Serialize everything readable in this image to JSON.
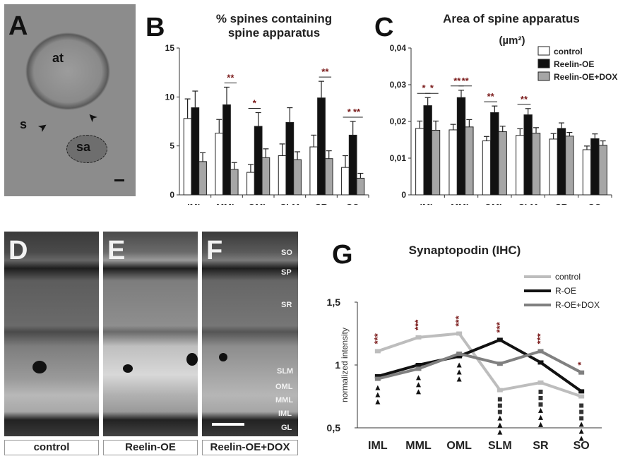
{
  "panels": {
    "a": {
      "letter": "A",
      "labels": {
        "at": "at",
        "s": "s",
        "sa": "sa"
      }
    },
    "b": {
      "letter": "B"
    },
    "c": {
      "letter": "C"
    },
    "d": {
      "letter": "D",
      "caption": "control"
    },
    "e": {
      "letter": "E",
      "caption": "Reelin-OE"
    },
    "f": {
      "letter": "F",
      "caption": "Reelin-OE+DOX"
    },
    "g": {
      "letter": "G"
    }
  },
  "layer_labels": [
    "SO",
    "SP",
    "SR",
    "SLM",
    "OML",
    "MML",
    "IML",
    "GL"
  ],
  "colors": {
    "control": "#ffffff",
    "reelin_oe": "#111111",
    "reelin_oe_dox": "#a6a6a6",
    "g_control": "#bdbdbd",
    "g_roe": "#111111",
    "g_roedox": "#808080",
    "sig": "#7a1a1a"
  },
  "chart_data": [
    {
      "id": "b",
      "type": "bar",
      "title": "% spines containing\nspine apparatus",
      "categories": [
        "IML",
        "MML",
        "OML",
        "SLM",
        "SR",
        "SO"
      ],
      "ylim": [
        0,
        15
      ],
      "yticks": [
        "0",
        "5",
        "10",
        "15"
      ],
      "series": [
        {
          "name": "control",
          "values": [
            7.8,
            6.3,
            2.3,
            4.0,
            4.9,
            2.8
          ],
          "errors": [
            2.0,
            1.4,
            0.8,
            1.2,
            1.2,
            1.2
          ]
        },
        {
          "name": "Reelin-OE",
          "values": [
            8.9,
            9.2,
            7.0,
            7.4,
            9.9,
            6.1
          ],
          "errors": [
            1.7,
            1.8,
            1.4,
            1.5,
            1.7,
            1.4
          ]
        },
        {
          "name": "Reelin-OE+DOX",
          "values": [
            3.4,
            2.6,
            3.8,
            3.6,
            3.7,
            1.7
          ],
          "errors": [
            0.9,
            0.7,
            0.9,
            0.8,
            0.8,
            0.5
          ]
        }
      ],
      "significance": [
        {
          "category": "MML",
          "pair": [
            1,
            2
          ],
          "label": "**"
        },
        {
          "category": "OML",
          "pair": [
            0,
            1
          ],
          "label": "*"
        },
        {
          "category": "SR",
          "pair": [
            1,
            2
          ],
          "label": "**"
        },
        {
          "category": "SO",
          "pair": [
            0,
            1
          ],
          "label": "*"
        },
        {
          "category": "SO",
          "pair": [
            1,
            2
          ],
          "label": "**"
        }
      ]
    },
    {
      "id": "c",
      "type": "bar",
      "title": "Area of spine apparatus",
      "ylabel": "(µm²)",
      "categories": [
        "IML",
        "MML",
        "OML",
        "SLM",
        "SR",
        "SO"
      ],
      "ylim": [
        0,
        0.04
      ],
      "yticks": [
        "0",
        "0,01",
        "0,02",
        "0,03",
        "0,04"
      ],
      "legend": [
        "control",
        "Reelin-OE",
        "Reelin-OE+DOX"
      ],
      "legend_position": "top-right",
      "series": [
        {
          "name": "control",
          "values": [
            0.0181,
            0.0177,
            0.0147,
            0.0162,
            0.0152,
            0.0123
          ],
          "errors": [
            0.002,
            0.0015,
            0.0012,
            0.0018,
            0.0015,
            0.001
          ]
        },
        {
          "name": "Reelin-OE",
          "values": [
            0.0243,
            0.0265,
            0.0224,
            0.0218,
            0.0181,
            0.0153
          ],
          "errors": [
            0.0022,
            0.002,
            0.0018,
            0.0017,
            0.0015,
            0.0013
          ]
        },
        {
          "name": "Reelin-OE+DOX",
          "values": [
            0.0176,
            0.0185,
            0.0172,
            0.0168,
            0.016,
            0.0135
          ],
          "errors": [
            0.0025,
            0.002,
            0.0015,
            0.0015,
            0.001,
            0.0012
          ]
        }
      ],
      "significance": [
        {
          "category": "IML",
          "pair": [
            0,
            1
          ],
          "label": "*"
        },
        {
          "category": "IML",
          "pair": [
            1,
            2
          ],
          "label": "*"
        },
        {
          "category": "MML",
          "pair": [
            0,
            1
          ],
          "label": "**"
        },
        {
          "category": "MML",
          "pair": [
            1,
            2
          ],
          "label": "**"
        },
        {
          "category": "OML",
          "pair": [
            0,
            1
          ],
          "label": "**"
        },
        {
          "category": "SLM",
          "pair": [
            0,
            1
          ],
          "label": "**"
        }
      ]
    },
    {
      "id": "g",
      "type": "line",
      "title": "Synaptopodin (IHC)",
      "ylabel": "normalized intensity",
      "categories": [
        "IML",
        "MML",
        "OML",
        "SLM",
        "SR",
        "SO"
      ],
      "ylim": [
        0.5,
        1.5
      ],
      "yticks": [
        "0,5",
        "1",
        "1,5"
      ],
      "legend": [
        "control",
        "R-OE",
        "R-OE+DOX"
      ],
      "legend_position": "top-right",
      "series": [
        {
          "name": "control",
          "values": [
            1.11,
            1.22,
            1.25,
            0.8,
            0.86,
            0.75
          ]
        },
        {
          "name": "R-OE",
          "values": [
            0.91,
            1.0,
            1.07,
            1.2,
            1.02,
            0.79
          ]
        },
        {
          "name": "R-OE+DOX",
          "values": [
            0.89,
            0.97,
            1.09,
            1.01,
            1.11,
            0.94
          ]
        }
      ],
      "stars_top": [
        "***",
        "***",
        "***",
        "***",
        "***",
        "*"
      ],
      "markers_below": [
        {
          "category": "IML",
          "triangles": 3,
          "squares": 0
        },
        {
          "category": "MML",
          "triangles": 3,
          "squares": 0
        },
        {
          "category": "OML",
          "triangles": 3,
          "squares": 0
        },
        {
          "category": "SLM",
          "triangles": 3,
          "squares": 3
        },
        {
          "category": "SR",
          "triangles": 3,
          "squares": 3
        },
        {
          "category": "SO",
          "triangles": 3,
          "squares": 3
        }
      ]
    }
  ]
}
